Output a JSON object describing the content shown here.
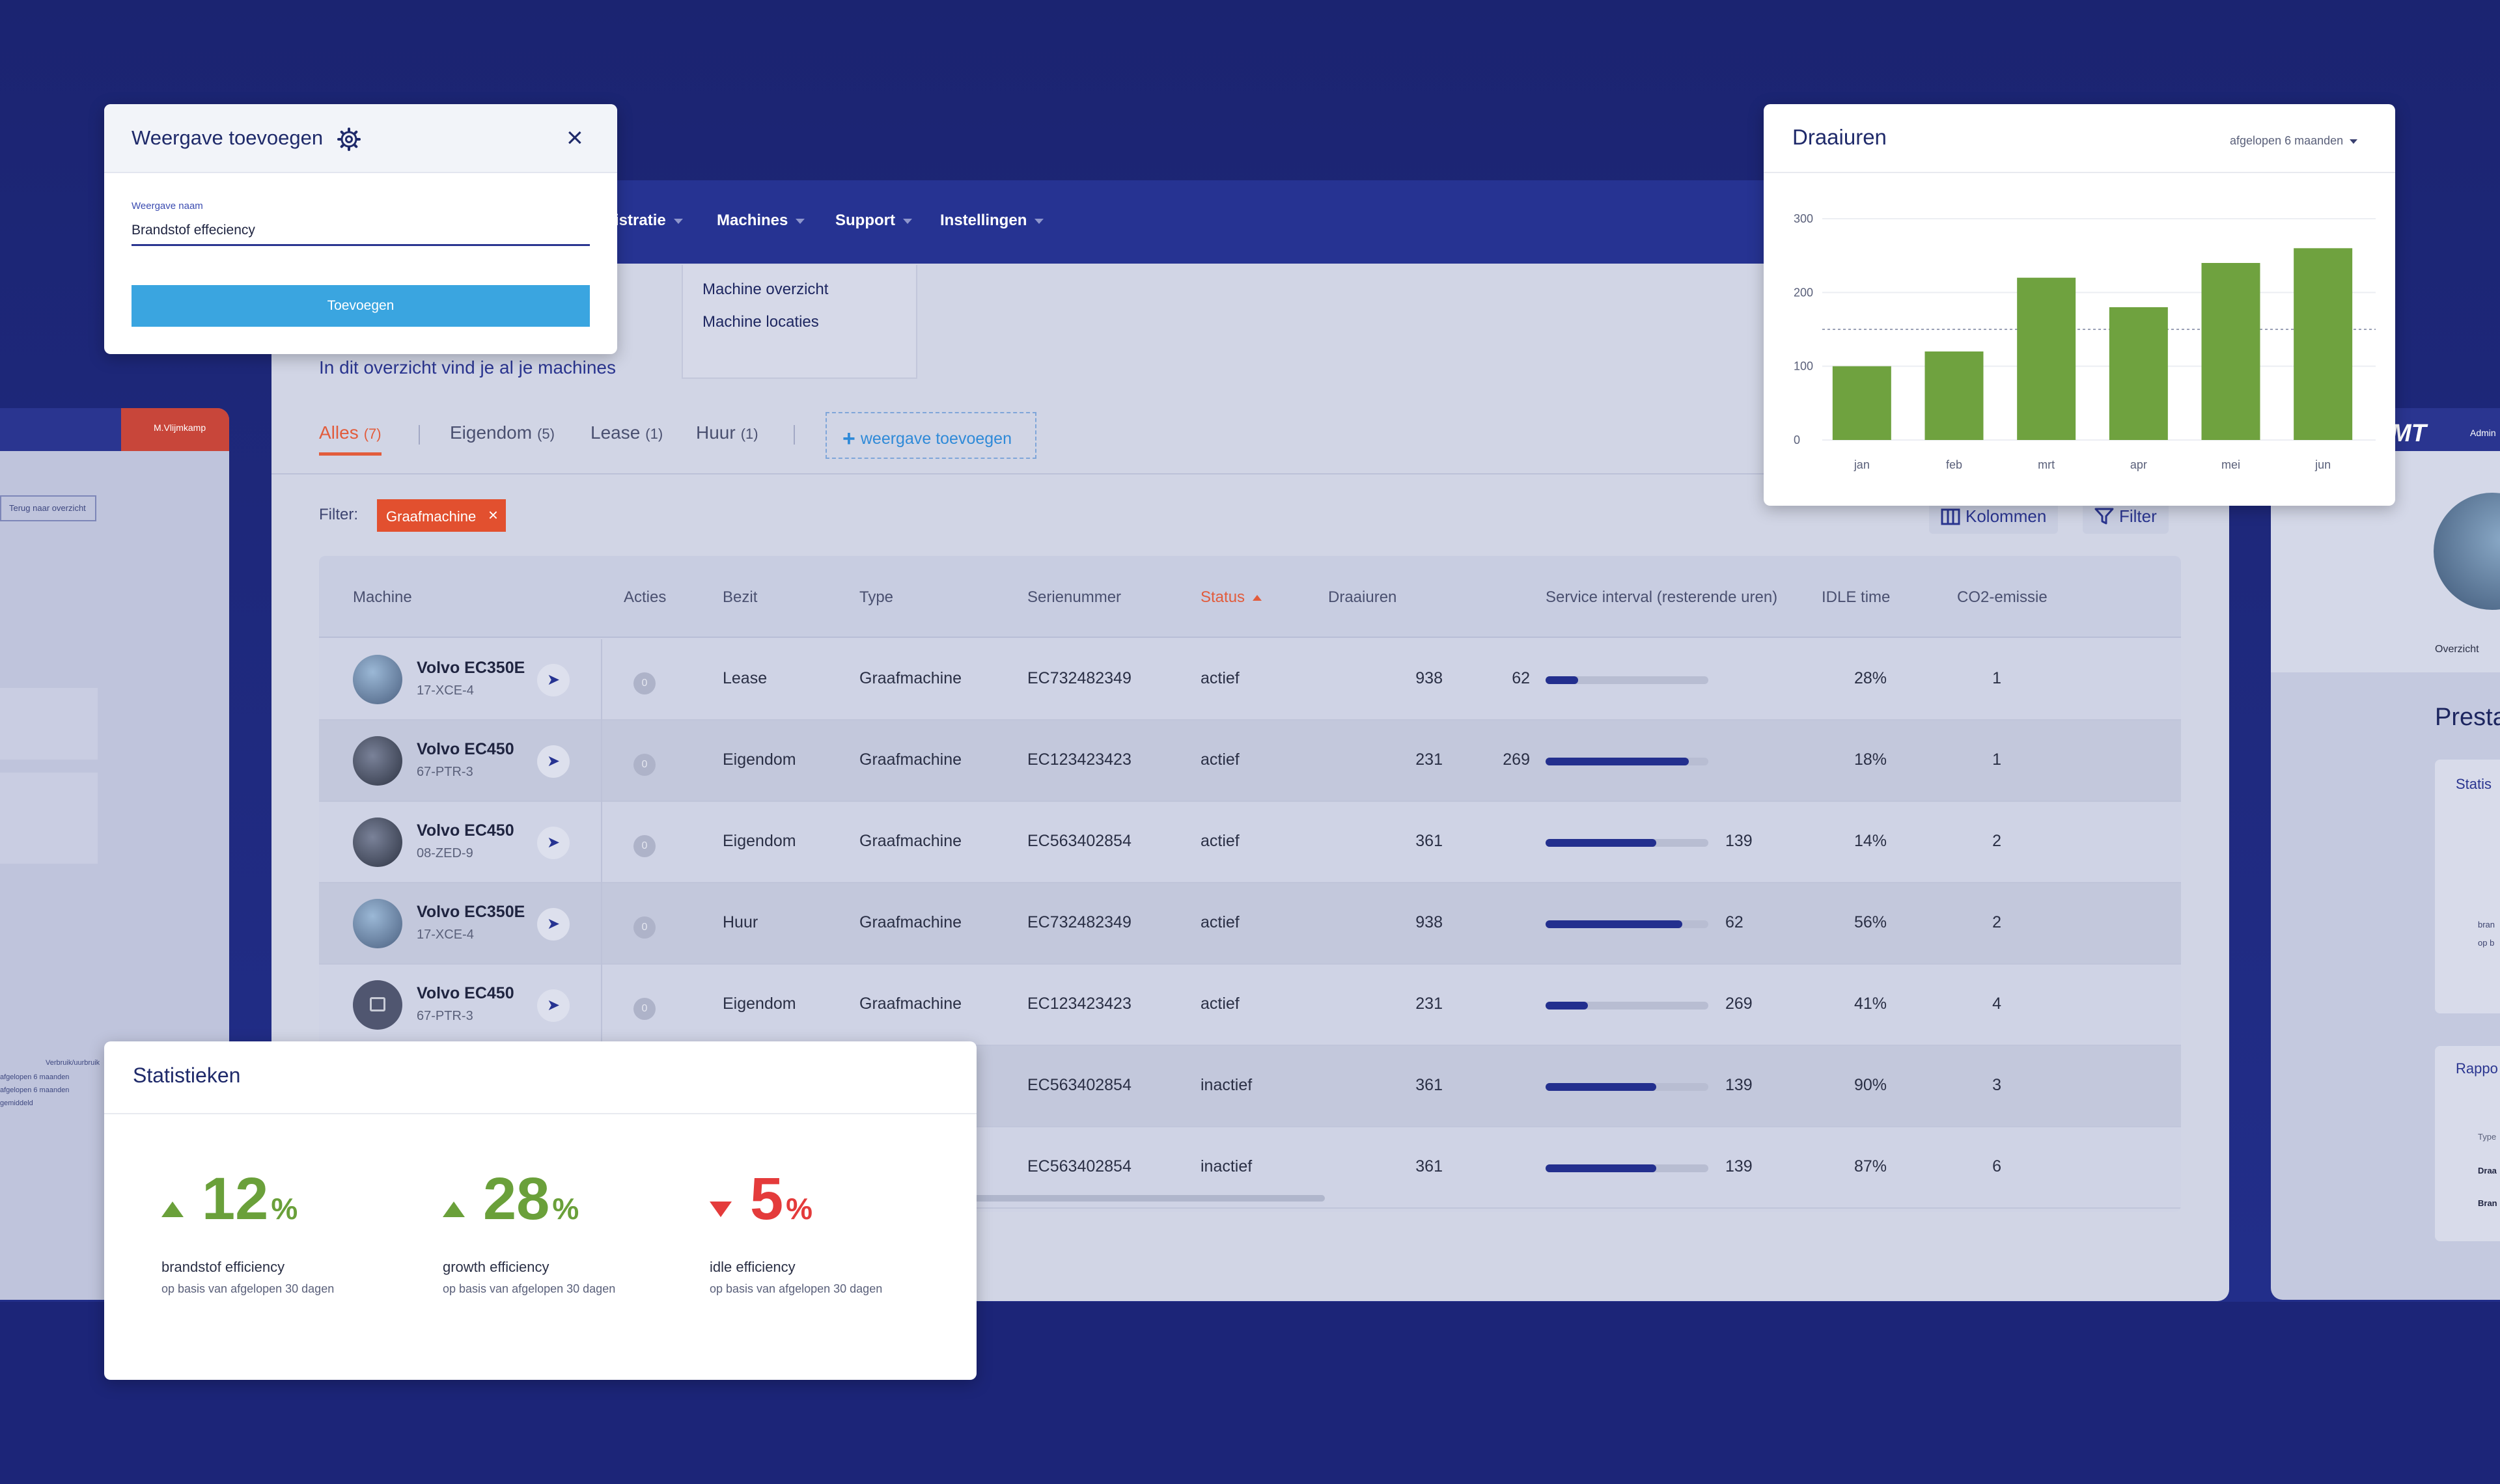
{
  "left_ghost": {
    "user": "M.Vlijmkamp",
    "back_button": "Terug naar overzicht",
    "dropdown": "Verbruik/uurbruik",
    "options": [
      "afgelopen 6 maanden",
      "afgelopen 6 maanden",
      "gemiddeld"
    ]
  },
  "right_ghost": {
    "logo": "MT",
    "admin": "Admin",
    "overview": "Overzicht",
    "heading": "Presta",
    "card1_title": "Statis",
    "card1_sub": [
      "bran",
      "op b"
    ],
    "card2_title": "Rappo",
    "card2_rows": [
      "Type",
      "Draa",
      "Bran"
    ]
  },
  "nav": {
    "items": [
      {
        "label": "istratie"
      },
      {
        "label": "Machines"
      },
      {
        "label": "Support"
      },
      {
        "label": "Instellingen"
      }
    ],
    "dropdown": [
      "Machine overzicht",
      "Machine locaties"
    ]
  },
  "page": {
    "subtitle": "In dit overzicht vind je al je machines"
  },
  "tabs": [
    {
      "label": "Alles",
      "count": "(7)"
    },
    {
      "label": "Eigendom",
      "count": "(5)"
    },
    {
      "label": "Lease",
      "count": "(1)"
    },
    {
      "label": "Huur",
      "count": "(1)"
    }
  ],
  "add_view": "weergave toevoegen",
  "filter": {
    "label": "Filter:",
    "chip": "Graafmachine",
    "columns_button": "Kolommen",
    "filter_button": "Filter"
  },
  "table": {
    "headers": [
      "Machine",
      "Acties",
      "Bezit",
      "Type",
      "Serienummer",
      "Status",
      "Draaiuren",
      "Service interval (resterende uren)",
      "IDLE time",
      "CO2-emissie"
    ],
    "rows": [
      {
        "name": "Volvo EC350E",
        "id": "17-XCE-4",
        "action": "0",
        "bezit": "Lease",
        "type": "Graafmachine",
        "serial": "EC732482349",
        "status": "actief",
        "hours": "938",
        "interval": "62",
        "interval_fraction": 0.2,
        "interval_side": "left",
        "idle": "28%",
        "co2": "1"
      },
      {
        "name": "Volvo EC450",
        "id": "67-PTR-3",
        "action": "0",
        "bezit": "Eigendom",
        "type": "Graafmachine",
        "serial": "EC123423423",
        "status": "actief",
        "hours": "231",
        "interval": "269",
        "interval_fraction": 0.88,
        "interval_side": "left",
        "idle": "18%",
        "co2": "1"
      },
      {
        "name": "Volvo EC450",
        "id": "08-ZED-9",
        "action": "0",
        "bezit": "Eigendom",
        "type": "Graafmachine",
        "serial": "EC563402854",
        "status": "actief",
        "hours": "361",
        "interval": "139",
        "interval_fraction": 0.68,
        "interval_side": "right",
        "idle": "14%",
        "co2": "2"
      },
      {
        "name": "Volvo EC350E",
        "id": "17-XCE-4",
        "action": "0",
        "bezit": "Huur",
        "type": "Graafmachine",
        "serial": "EC732482349",
        "status": "actief",
        "hours": "938",
        "interval": "62",
        "interval_fraction": 0.84,
        "interval_side": "right",
        "idle": "56%",
        "co2": "2"
      },
      {
        "name": "Volvo EC450",
        "id": "67-PTR-3",
        "action": "0",
        "bezit": "Eigendom",
        "type": "Graafmachine",
        "serial": "EC123423423",
        "status": "actief",
        "hours": "231",
        "interval": "269",
        "interval_fraction": 0.26,
        "interval_side": "right",
        "idle": "41%",
        "co2": "4"
      },
      {
        "name": "",
        "id": "",
        "action": "",
        "bezit": "",
        "type": "",
        "serial": "EC563402854",
        "status": "inactief",
        "hours": "361",
        "interval": "139",
        "interval_fraction": 0.68,
        "interval_side": "right",
        "idle": "90%",
        "co2": "3"
      },
      {
        "name": "",
        "id": "",
        "action": "",
        "bezit": "",
        "type": "",
        "serial": "EC563402854",
        "status": "inactief",
        "hours": "361",
        "interval": "139",
        "interval_fraction": 0.68,
        "interval_side": "right",
        "idle": "87%",
        "co2": "6"
      }
    ]
  },
  "weergave_dialog": {
    "title": "Weergave toevoegen",
    "field_label": "Weergave naam",
    "field_value": "Brandstof effeciency",
    "button": "Toevoegen"
  },
  "chart_card": {
    "title": "Draaiuren",
    "period": "afgelopen 6 maanden"
  },
  "chart_data": {
    "type": "bar",
    "title": "Draaiuren",
    "categories": [
      "jan",
      "feb",
      "mrt",
      "apr",
      "mei",
      "jun"
    ],
    "values": [
      100,
      120,
      220,
      180,
      240,
      260
    ],
    "ylim": [
      0,
      300
    ],
    "yticks": [
      0,
      100,
      200,
      300
    ],
    "reference_line": 150,
    "color": "#6fa23f",
    "grid": true
  },
  "stats_card": {
    "title": "Statistieken",
    "items": [
      {
        "value": "12",
        "unit": "%",
        "direction": "up",
        "label": "brandstof efficiency",
        "sub": "op basis van afgelopen 30 dagen"
      },
      {
        "value": "28",
        "unit": "%",
        "direction": "up",
        "label": "growth efficiency",
        "sub": "op basis van afgelopen 30 dagen"
      },
      {
        "value": "5",
        "unit": "%",
        "direction": "down",
        "label": "idle efficiency",
        "sub": "op basis van afgelopen 30 dagen"
      }
    ]
  },
  "colors": {
    "background": "#1c2578",
    "navbar": "#263392",
    "accent_orange": "#e25c3c",
    "button_blue": "#3aa5e0",
    "bar_green": "#6fa23f",
    "stat_green": "#6aa03a",
    "stat_red": "#e43b3b"
  }
}
